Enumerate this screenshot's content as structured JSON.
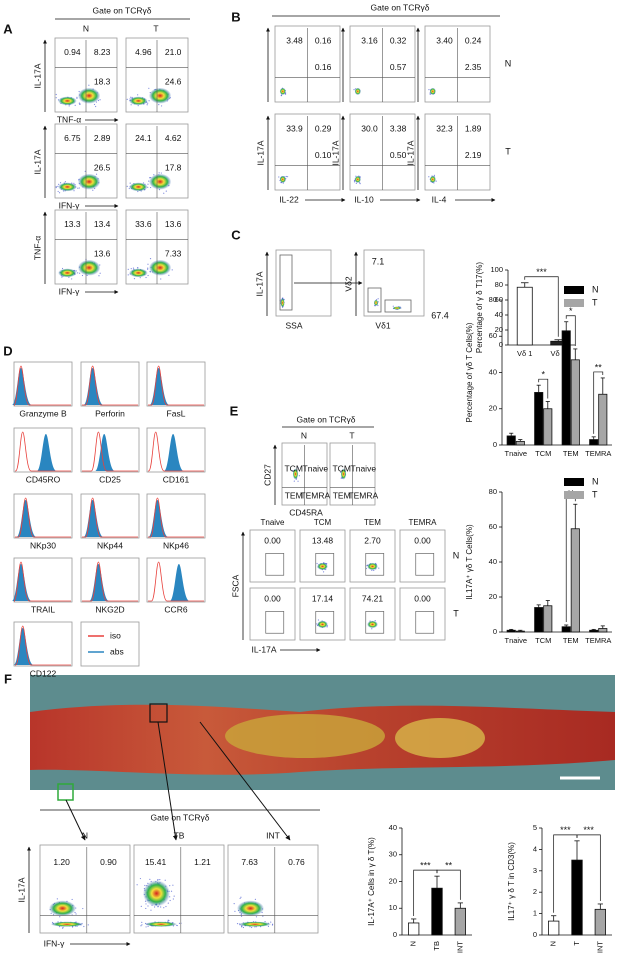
{
  "panels": {
    "A": {
      "label": "A",
      "gate": "Gate on TCRγδ",
      "columns": [
        "N",
        "T"
      ],
      "rows": [
        {
          "y_label": "IL-17A",
          "x_label": "TNF-α",
          "plots": [
            [
              "0.94",
              "8.23",
              "18.3"
            ],
            [
              "4.96",
              "21.0",
              "24.6"
            ]
          ]
        },
        {
          "y_label": "IL-17A",
          "x_label": "IFN-γ",
          "plots": [
            [
              "6.75",
              "2.89",
              "26.5"
            ],
            [
              "24.1",
              "4.62",
              "17.8"
            ]
          ]
        },
        {
          "y_label": "TNF-α",
          "x_label": "IFN-γ",
          "plots": [
            [
              "13.3",
              "13.4",
              "13.6"
            ],
            [
              "33.6",
              "13.6",
              "7.33"
            ]
          ]
        }
      ]
    },
    "B": {
      "label": "B",
      "gate": "Gate on TCRγδ",
      "row_labels": [
        "N",
        "T"
      ],
      "x_labels": [
        "IL-22",
        "IL-10",
        "IL-4"
      ],
      "y_label": "IL-17A",
      "plots": [
        [
          [
            "3.48",
            "0.16",
            "0.16"
          ],
          [
            "3.16",
            "0.32",
            "0.57"
          ],
          [
            "3.40",
            "0.24",
            "2.35"
          ]
        ],
        [
          [
            "33.9",
            "0.29",
            "0.10"
          ],
          [
            "30.0",
            "3.38",
            "0.50"
          ],
          [
            "32.3",
            "1.89",
            "2.19"
          ]
        ]
      ]
    },
    "C": {
      "label": "C",
      "y_label_1": "IL-17A",
      "x_label_1": "SSA",
      "y_label_2": "Vδ2",
      "x_label_2": "Vδ1",
      "gate_values": [
        "7.1",
        "67.4"
      ]
    },
    "D": {
      "label": "D",
      "markers": [
        "Granzyme B",
        "Perforin",
        "FasL",
        "CD45RO",
        "CD25",
        "CD161",
        "NKp30",
        "NKp44",
        "NKp46",
        "TRAIL",
        "NKG2D",
        "CCR6",
        "CD122"
      ],
      "legend": [
        {
          "name": "iso",
          "color": "#e8413c"
        },
        {
          "name": "abs",
          "color": "#2a86c0"
        }
      ]
    },
    "E": {
      "label": "E",
      "gate": "Gate on TCRγδ",
      "columns": [
        "N",
        "T"
      ],
      "quadrants": [
        "TCM",
        "Tnaive",
        "TEM",
        "TEMRA"
      ],
      "y_label": "CD27",
      "x_label": "CD45RA",
      "subsets": [
        "Tnaive",
        "TCM",
        "TEM",
        "TEMRA"
      ],
      "row_labels": [
        "N",
        "T"
      ],
      "values": [
        [
          "0.00",
          "13.48",
          "2.70",
          "0.00"
        ],
        [
          "0.00",
          "17.14",
          "74.21",
          "0.00"
        ]
      ],
      "y_label_2": "FSCA",
      "x_label_2": "IL-17A"
    },
    "F": {
      "label": "F",
      "gate": "Gate on TCRγδ",
      "columns": [
        "N",
        "TB",
        "INT"
      ],
      "values": [
        [
          "1.20",
          "0.90"
        ],
        [
          "15.41",
          "1.21"
        ],
        [
          "7.63",
          "0.76"
        ]
      ],
      "y_label": "IL-17A",
      "x_label": "IFN-γ"
    }
  },
  "chart_data": [
    {
      "type": "bar",
      "y_label": "Percentage of γ δ T17(%)",
      "categories": [
        "Vδ 1",
        "Vδ 2"
      ],
      "values": [
        77,
        5
      ],
      "errors": [
        6,
        2
      ],
      "colors": [
        "#ffffff",
        "#222222"
      ],
      "ylim": [
        0,
        100
      ],
      "yticks": [
        0,
        20,
        40,
        60,
        80,
        100
      ],
      "annotations": [
        "***"
      ]
    },
    {
      "type": "grouped_bar",
      "y_label": "Percentage of γδ T Cells(%)",
      "categories": [
        "Tnaive",
        "TCM",
        "TEM",
        "TEMRA"
      ],
      "series": [
        {
          "name": "N",
          "color": "#000000",
          "values": [
            5,
            29,
            63,
            3
          ],
          "errors": [
            1.5,
            4,
            5,
            1.5
          ]
        },
        {
          "name": "T",
          "color": "#a6a6a6",
          "values": [
            2,
            20,
            47,
            28
          ],
          "errors": [
            1,
            4,
            6,
            9
          ]
        }
      ],
      "ylim": [
        0,
        80
      ],
      "yticks": [
        0,
        20,
        40,
        60,
        80
      ],
      "legend": "upper right",
      "annotations": [
        "*",
        "*",
        "**"
      ]
    },
    {
      "type": "grouped_bar",
      "y_label": "IL17A⁺ γδ T Cells(%)",
      "categories": [
        "Tnaive",
        "TCM",
        "TEM",
        "TEMRA"
      ],
      "series": [
        {
          "name": "N",
          "color": "#000000",
          "values": [
            1,
            14,
            3,
            1
          ],
          "errors": [
            0.5,
            1.5,
            1,
            0.5
          ]
        },
        {
          "name": "T",
          "color": "#a6a6a6",
          "values": [
            0.5,
            15,
            59,
            2
          ],
          "errors": [
            0.5,
            3,
            14,
            1.5
          ]
        }
      ],
      "ylim": [
        0,
        80
      ],
      "yticks": [
        0,
        20,
        40,
        60,
        80
      ],
      "legend": "upper right",
      "annotations": [
        "**"
      ]
    },
    {
      "type": "bar",
      "y_label": "IL-17A⁺ Cells in γ δ T(%)",
      "categories": [
        "N",
        "TB",
        "INT"
      ],
      "values": [
        4.5,
        17.5,
        10
      ],
      "errors": [
        1.5,
        4.5,
        2
      ],
      "colors": [
        "#ffffff",
        "#000000",
        "#a6a6a6"
      ],
      "ylim": [
        0,
        40
      ],
      "yticks": [
        0,
        10,
        20,
        30,
        40
      ],
      "annotations": [
        "***",
        "**"
      ]
    },
    {
      "type": "bar",
      "y_label": "IL17⁺ γ δ T in CD3(%)",
      "categories": [
        "N",
        "T",
        "INT"
      ],
      "values": [
        0.65,
        3.5,
        1.2
      ],
      "errors": [
        0.25,
        0.9,
        0.25
      ],
      "colors": [
        "#ffffff",
        "#000000",
        "#a6a6a6"
      ],
      "ylim": [
        0,
        5
      ],
      "yticks": [
        0,
        1,
        2,
        3,
        4,
        5
      ],
      "annotations": [
        "***",
        "***"
      ]
    }
  ]
}
